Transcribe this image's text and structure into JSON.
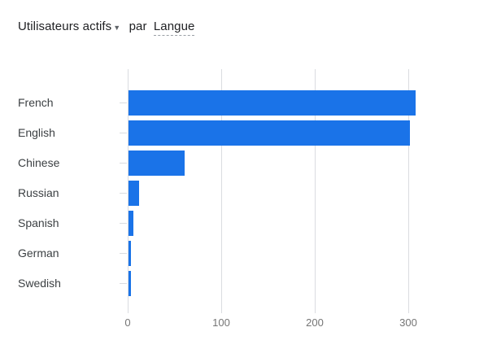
{
  "header": {
    "metric_label": "Utilisateurs actifs",
    "caret_icon": "▼",
    "connector": "par",
    "dimension_label": "Langue"
  },
  "colors": {
    "bar": "#1a73e8",
    "title_text": "#202124",
    "category_text": "#3c4043",
    "axis_text": "#757575",
    "gridline": "#dadce0"
  },
  "chart_data": {
    "type": "bar",
    "orientation": "horizontal",
    "title": "Utilisateurs actifs par Langue",
    "categories": [
      "French",
      "English",
      "Chinese",
      "Russian",
      "Spanish",
      "German",
      "Swedish"
    ],
    "values": [
      307,
      301,
      60,
      11,
      5,
      3,
      3
    ],
    "xlabel": "",
    "ylabel": "",
    "xlim": [
      0,
      350
    ],
    "xticks": [
      0,
      100,
      200,
      300
    ],
    "grid": true,
    "legend": false
  }
}
